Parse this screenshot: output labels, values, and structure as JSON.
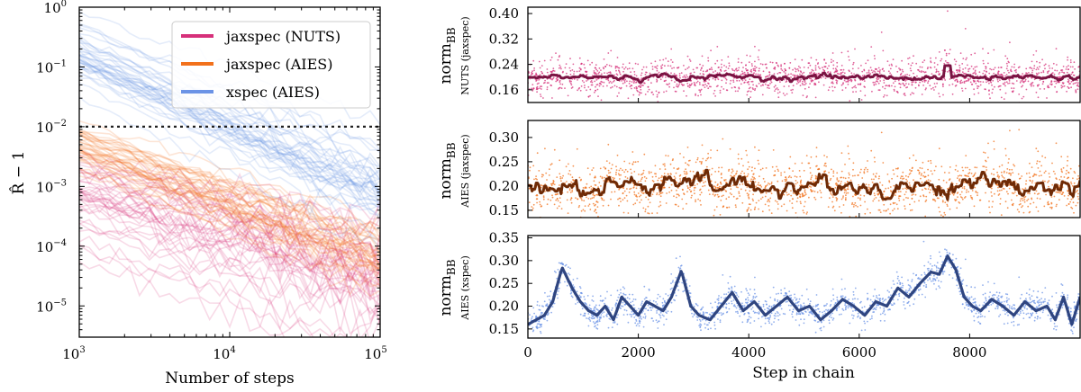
{
  "colors": {
    "nuts": "#d6307a",
    "nuts_dark": "#7a1342",
    "aies": "#f2711c",
    "aies_dark": "#6e2a06",
    "xspec": "#6b93e6",
    "xspec_dark": "#2f4580",
    "threshold": "#222222"
  },
  "chart_data": [
    {
      "type": "line",
      "title": "",
      "xlabel": "Number of steps",
      "ylabel": "R̂ − 1",
      "xscale": "log",
      "yscale": "log",
      "xlim": [
        1000,
        100000
      ],
      "ylim": [
        3e-06,
        1
      ],
      "x_tick_labels": [
        "10",
        "10",
        "10"
      ],
      "x_tick_exps": [
        "3",
        "4",
        "5"
      ],
      "y_tick_labels": [
        "10",
        "10",
        "10",
        "10",
        "10",
        "10"
      ],
      "y_tick_exps": [
        "0",
        "−1",
        "−2",
        "−3",
        "−4",
        "−5"
      ],
      "threshold": 0.01,
      "legend_position": "top-right",
      "legend": [
        "jaxspec (NUTS)",
        "jaxspec (AIES)",
        "xspec (AIES)"
      ],
      "series": [
        {
          "name": "jaxspec (NUTS)",
          "x": [
            1000,
            100000
          ],
          "center_values": [
            0.0006,
            2e-05
          ],
          "spread_dex": 0.45,
          "n_chains": 40
        },
        {
          "name": "jaxspec (AIES)",
          "x": [
            1000,
            100000
          ],
          "center_values": [
            0.0045,
            6e-05
          ],
          "spread_dex": 0.22,
          "n_chains": 40
        },
        {
          "name": "xspec (AIES)",
          "x": [
            1000,
            100000
          ],
          "center_values": [
            0.15,
            0.0008
          ],
          "spread_dex": 0.28,
          "n_chains": 40
        }
      ]
    },
    {
      "type": "scatter",
      "title": "",
      "ylabel_main": "norm",
      "ylabel_sub": "BB",
      "ylabel_second": "NUTS (jaxspec)",
      "xlim": [
        0,
        10000
      ],
      "ylim": [
        0.12,
        0.42
      ],
      "y_ticks": [
        0.16,
        0.24,
        0.32,
        0.4
      ],
      "y_tick_labels": [
        "0.16",
        "0.24",
        "0.32",
        "0.40"
      ],
      "series": [
        {
          "name": "samples",
          "color_key": "nuts",
          "mean": 0.2,
          "noise": 0.028
        },
        {
          "name": "running mean",
          "color_key": "nuts_dark",
          "mean": 0.2,
          "wander": 0.004,
          "spike_at": 7600,
          "spike_value": 0.236
        }
      ]
    },
    {
      "type": "scatter",
      "title": "",
      "ylabel_main": "norm",
      "ylabel_sub": "BB",
      "ylabel_second": "AIES (jaxspec)",
      "xlim": [
        0,
        10000
      ],
      "ylim": [
        0.135,
        0.335
      ],
      "y_ticks": [
        0.15,
        0.2,
        0.25,
        0.3
      ],
      "y_tick_labels": [
        "0.15",
        "0.20",
        "0.25",
        "0.30"
      ],
      "series": [
        {
          "name": "samples",
          "color_key": "aies",
          "mean": 0.2,
          "noise": 0.026
        },
        {
          "name": "running mean",
          "color_key": "aies_dark",
          "mean": 0.2,
          "wander": 0.009
        }
      ]
    },
    {
      "type": "scatter",
      "title": "",
      "xlabel": "Step in chain",
      "ylabel_main": "norm",
      "ylabel_sub": "BB",
      "ylabel_second": "AIES (xspec)",
      "xlim": [
        0,
        10000
      ],
      "ylim": [
        0.13,
        0.355
      ],
      "x_ticks": [
        0,
        2000,
        4000,
        6000,
        8000
      ],
      "x_tick_labels": [
        "0",
        "2000",
        "4000",
        "6000",
        "8000"
      ],
      "y_ticks": [
        0.15,
        0.2,
        0.25,
        0.3,
        0.35
      ],
      "y_tick_labels": [
        "0.15",
        "0.20",
        "0.25",
        "0.30",
        "0.35"
      ],
      "series": [
        {
          "name": "samples",
          "color_key": "xspec",
          "noise": 0.016
        },
        {
          "name": "running mean",
          "color_key": "xspec_dark",
          "x": [
            0,
            150,
            300,
            450,
            620,
            800,
            950,
            1100,
            1250,
            1400,
            1550,
            1700,
            1850,
            2000,
            2150,
            2300,
            2450,
            2600,
            2780,
            2950,
            3100,
            3300,
            3500,
            3700,
            3900,
            4100,
            4300,
            4500,
            4700,
            4900,
            5100,
            5300,
            5500,
            5700,
            5900,
            6100,
            6300,
            6500,
            6700,
            6900,
            7100,
            7300,
            7450,
            7600,
            7750,
            7900,
            8050,
            8200,
            8400,
            8600,
            8800,
            9000,
            9200,
            9400,
            9550,
            9700,
            9850,
            10000
          ],
          "values": [
            0.16,
            0.17,
            0.18,
            0.21,
            0.285,
            0.24,
            0.21,
            0.19,
            0.18,
            0.2,
            0.17,
            0.22,
            0.2,
            0.18,
            0.21,
            0.2,
            0.19,
            0.22,
            0.278,
            0.2,
            0.18,
            0.17,
            0.2,
            0.23,
            0.19,
            0.21,
            0.18,
            0.2,
            0.22,
            0.19,
            0.2,
            0.17,
            0.19,
            0.215,
            0.2,
            0.18,
            0.21,
            0.2,
            0.24,
            0.22,
            0.25,
            0.275,
            0.27,
            0.31,
            0.28,
            0.22,
            0.2,
            0.19,
            0.215,
            0.2,
            0.18,
            0.21,
            0.19,
            0.2,
            0.17,
            0.22,
            0.16,
            0.22
          ]
        }
      ]
    }
  ]
}
